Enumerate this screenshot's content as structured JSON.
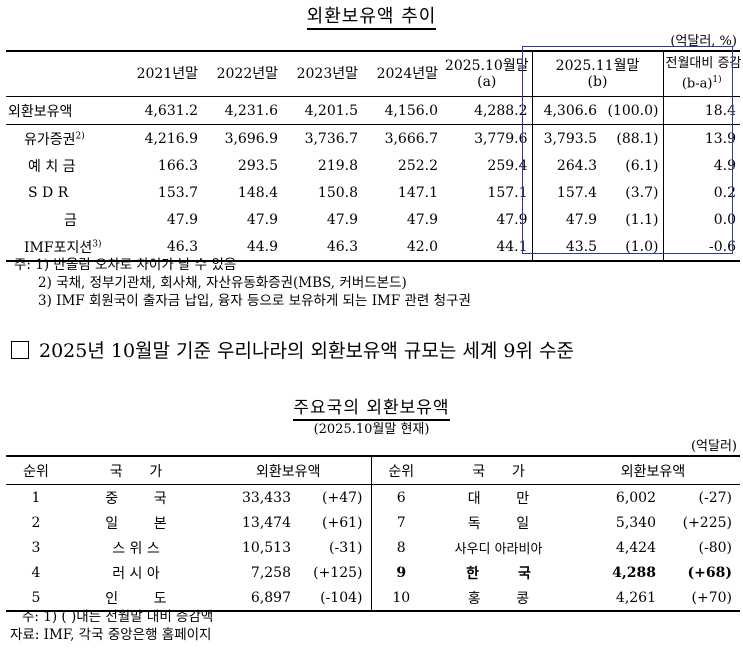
{
  "table1": {
    "title": "외환보유액 추이",
    "unit": "(억달러, %)",
    "headers": [
      "2021년말",
      "2022년말",
      "2023년말",
      "2024년말",
      "2025.10월말",
      "(a)",
      "2025.11월말",
      "(b)",
      "전월대비 증감",
      "(b-a)",
      "1)"
    ],
    "rows": [
      {
        "label": "외환보유액",
        "sup": "",
        "v": [
          "4,631.2",
          "4,231.6",
          "4,201.5",
          "4,156.0",
          "4,288.2",
          "4,306.6",
          "(100.0)",
          "18.4"
        ]
      },
      {
        "label": "유가증권",
        "sup": "2)",
        "v": [
          "4,216.9",
          "3,696.9",
          "3,736.7",
          "3,666.7",
          "3,779.6",
          "3,793.5",
          "(88.1)",
          "13.9"
        ]
      },
      {
        "label": "예 치 금",
        "sup": "",
        "v": [
          "166.3",
          "293.5",
          "219.8",
          "252.2",
          "259.4",
          "264.3",
          "(6.1)",
          "4.9"
        ]
      },
      {
        "label": "S D R",
        "sup": "",
        "v": [
          "153.7",
          "148.4",
          "150.8",
          "147.1",
          "157.1",
          "157.4",
          "(3.7)",
          "0.2"
        ]
      },
      {
        "label": "금",
        "sup": "",
        "v": [
          "47.9",
          "47.9",
          "47.9",
          "47.9",
          "47.9",
          "47.9",
          "(1.1)",
          "0.0"
        ]
      },
      {
        "label": "IMF포지션",
        "sup": "3)",
        "v": [
          "46.3",
          "44.9",
          "46.3",
          "42.0",
          "44.1",
          "43.5",
          "(1.0)",
          "-0.6"
        ]
      }
    ],
    "notes": [
      "주: 1) 반올림 오차로 차이가 날 수 있음",
      "2) 국채, 정부기관채, 회사채, 자산유동화증권(MBS, 커버드본드)",
      "3) IMF 회원국이 출자금 납입, 융자 등으로 보유하게 되는 IMF 관련 청구권"
    ]
  },
  "headline": "2025년 10월말 기준 우리나라의 외환보유액 규모는 세계 9위 수준",
  "table2": {
    "title": "주요국의 외환보유액",
    "subtitle": "(2025.10월말 현재)",
    "unit": "(억달러)",
    "headers": [
      "순위",
      "국",
      "가",
      "외환보유액"
    ],
    "rows": [
      {
        "left": {
          "rank": "1",
          "c1": "중",
          "c2": "국",
          "value": "33,433",
          "change": "(+47)"
        },
        "right": {
          "rank": "6",
          "c1": "대",
          "c2": "만",
          "value": "6,002",
          "change": "(-27)"
        }
      },
      {
        "left": {
          "rank": "2",
          "c1": "일",
          "c2": "본",
          "value": "13,474",
          "change": "(+61)"
        },
        "right": {
          "rank": "7",
          "c1": "독",
          "c2": "일",
          "value": "5,340",
          "change": "(+225)"
        }
      },
      {
        "left": {
          "rank": "3",
          "c1": "스 위 스",
          "c2": "",
          "value": "10,513",
          "change": "(-31)"
        },
        "right": {
          "rank": "8",
          "c1": "사우디 아라비아",
          "c2": "",
          "value": "4,424",
          "change": "(-80)"
        }
      },
      {
        "left": {
          "rank": "4",
          "c1": "러 시 아",
          "c2": "",
          "value": "7,258",
          "change": "(+125)"
        },
        "right": {
          "rank": "9",
          "c1": "한",
          "c2": "국",
          "value": "4,288",
          "change": "(+68)"
        }
      },
      {
        "left": {
          "rank": "5",
          "c1": "인",
          "c2": "도",
          "value": "6,897",
          "change": "(-104)"
        },
        "right": {
          "rank": "10",
          "c1": "홍",
          "c2": "콩",
          "value": "4,261",
          "change": "(+70)"
        }
      }
    ],
    "notes": [
      "주: 1) (   )내는 전월말 대비 증감액",
      "자료: IMF, 각국 중앙은행 홈페이지"
    ]
  }
}
